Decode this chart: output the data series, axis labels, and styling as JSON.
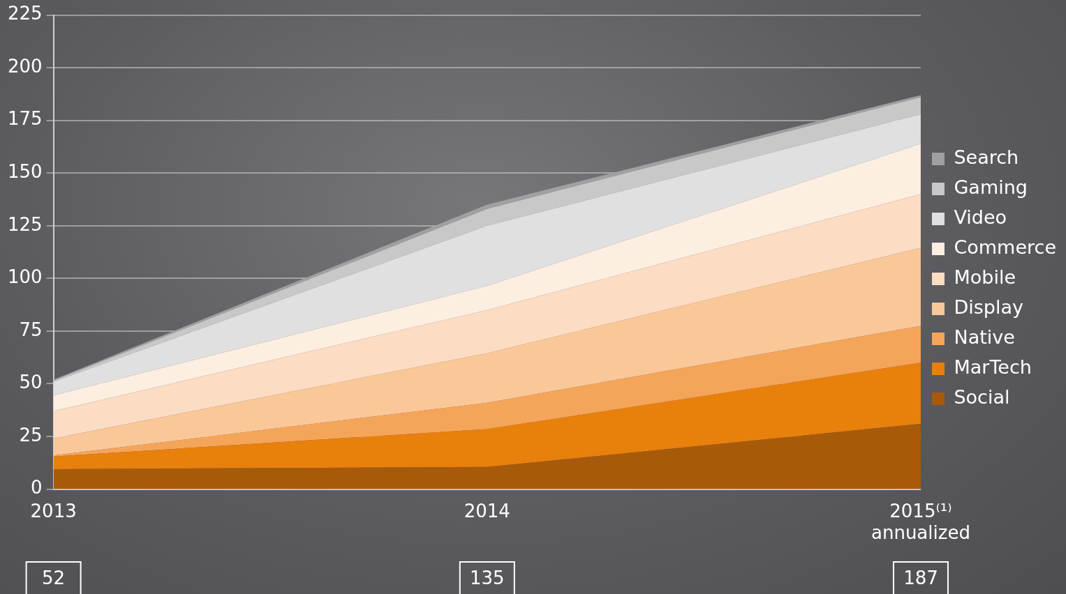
{
  "chart_data": {
    "type": "area",
    "stacked": true,
    "categories": [
      "2013",
      "2014",
      "2015⁽¹⁾\nannualized"
    ],
    "series": [
      {
        "name": "Social",
        "color": "#a85a0a",
        "values": [
          9.5,
          10.5,
          31
        ]
      },
      {
        "name": "MarTech",
        "color": "#e8800c",
        "values": [
          6,
          18,
          29
        ]
      },
      {
        "name": "Native",
        "color": "#f5a55a",
        "values": [
          0.5,
          12.5,
          17.5
        ]
      },
      {
        "name": "Display",
        "color": "#fac898",
        "values": [
          8,
          23.5,
          37
        ]
      },
      {
        "name": "Mobile",
        "color": "#fcdcc2",
        "values": [
          13,
          20.5,
          25.5
        ]
      },
      {
        "name": "Commerce",
        "color": "#fdeee2",
        "values": [
          7.5,
          11.5,
          24
        ]
      },
      {
        "name": "Video",
        "color": "#e0e0e0",
        "values": [
          6.5,
          28.5,
          14
        ]
      },
      {
        "name": "Gaming",
        "color": "#c8c8c8",
        "values": [
          0.5,
          8,
          8
        ]
      },
      {
        "name": "Search",
        "color": "#a0a0a0",
        "values": [
          0.5,
          2,
          1
        ]
      }
    ],
    "ylim": [
      0,
      225
    ],
    "yticks": [
      0,
      25,
      50,
      75,
      100,
      125,
      150,
      175,
      200,
      225
    ],
    "grid": "y",
    "legend": "right",
    "annotations": [
      "52",
      "135",
      "187"
    ]
  }
}
